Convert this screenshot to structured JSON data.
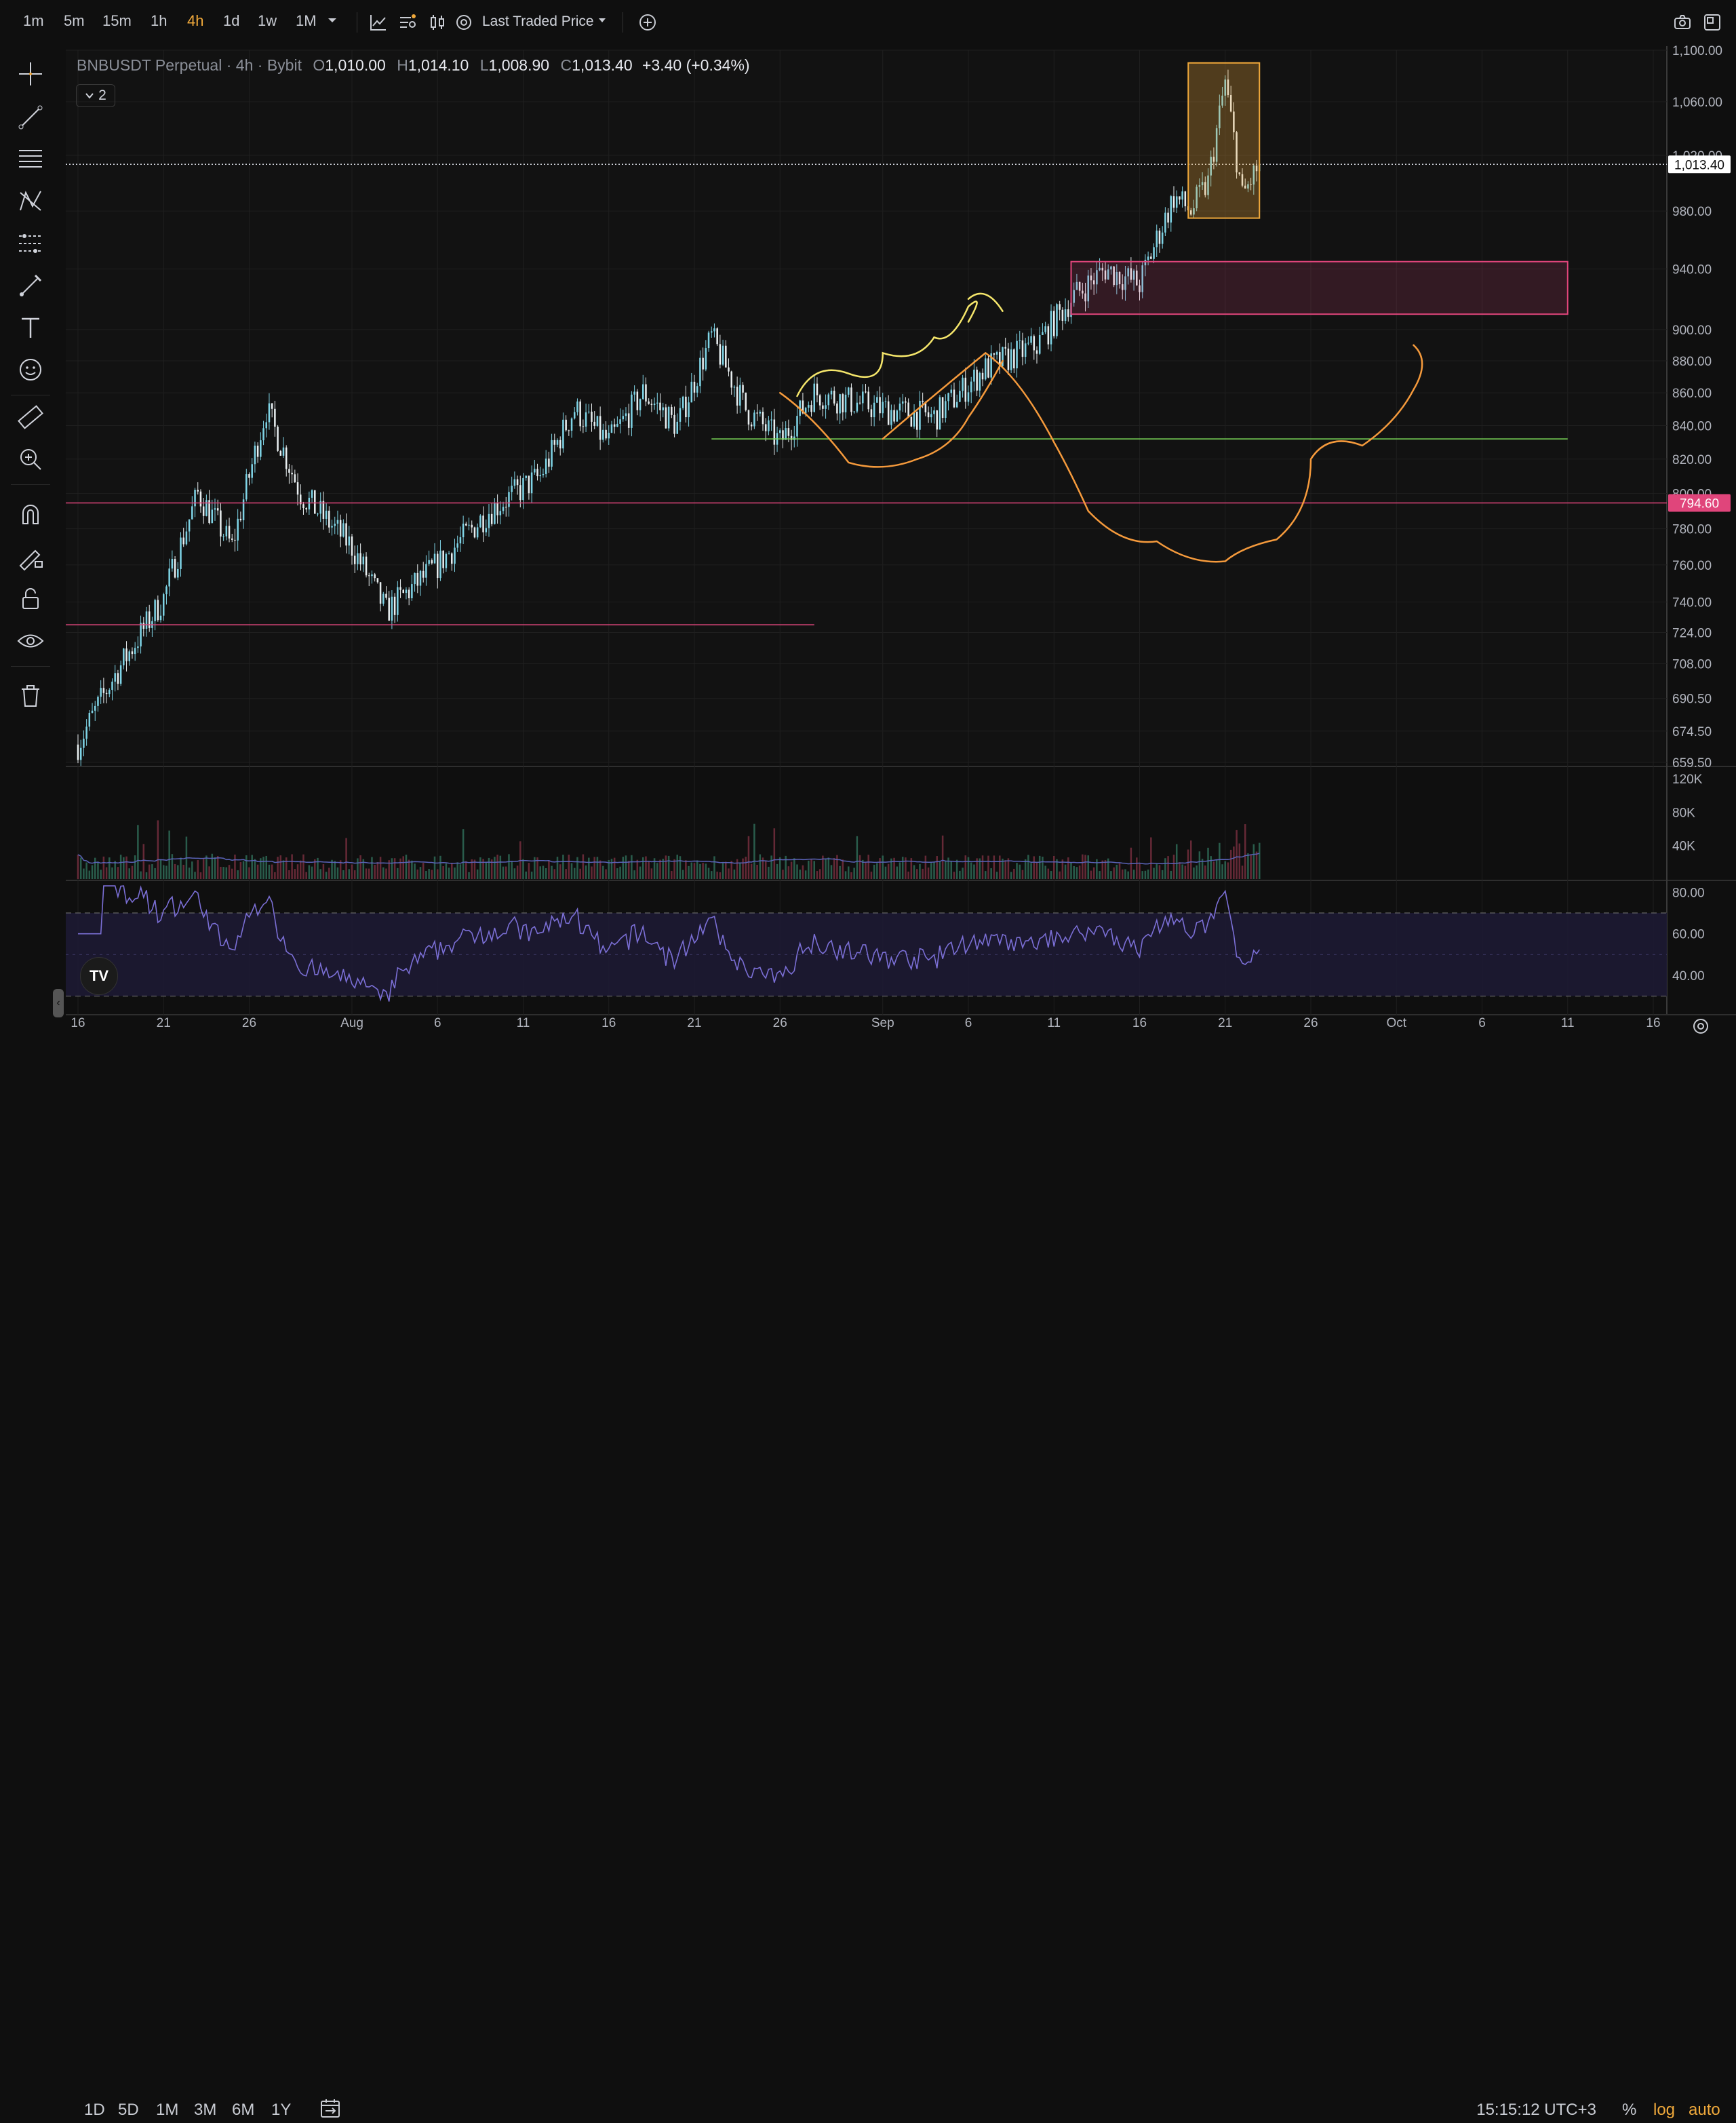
{
  "timeframes": [
    "1m",
    "5m",
    "15m",
    "1h",
    "4h",
    "1d",
    "1w",
    "1M"
  ],
  "active_timeframe": "4h",
  "price_source": "Last Traded Price",
  "legend": {
    "symbol": "BNBUSDT Perpetual",
    "interval": "4h",
    "exchange": "Bybit",
    "o_label": "O",
    "o_value": "1,010.00",
    "h_label": "H",
    "h_value": "1,014.10",
    "l_label": "L",
    "l_value": "1,008.90",
    "c_label": "C",
    "c_value": "1,013.40",
    "change": "+3.40 (+0.34%)",
    "indicator_count": "2"
  },
  "price_axis": {
    "ticks": [
      "1,100.00",
      "1,060.00",
      "1,020.00",
      "980.00",
      "940.00",
      "900.00",
      "880.00",
      "860.00",
      "840.00",
      "820.00",
      "800.00",
      "780.00",
      "760.00",
      "740.00",
      "724.00",
      "708.00",
      "690.50",
      "674.50",
      "659.50"
    ],
    "last_price_label": "1,013.40",
    "level_label": "794.60"
  },
  "volume_axis": {
    "ticks": [
      "120K",
      "80K",
      "40K"
    ]
  },
  "rsi_axis": {
    "ticks": [
      "80.00",
      "60.00",
      "40.00"
    ]
  },
  "time_axis": {
    "labels": [
      "16",
      "21",
      "26",
      "Aug",
      "6",
      "11",
      "16",
      "21",
      "26",
      "Sep",
      "6",
      "11",
      "16",
      "21",
      "26",
      "Oct",
      "6",
      "11",
      "16"
    ]
  },
  "ranges": [
    "1D",
    "5D",
    "1M",
    "3M",
    "6M",
    "1Y"
  ],
  "clock": "15:15:12 UTC+3",
  "scale_options": {
    "percent": "%",
    "log": "log",
    "auto": "auto"
  },
  "colors": {
    "up": "#7fd4e6",
    "down": "#e8eef0",
    "accent": "#f0a93b",
    "pink": "#e0457b",
    "green": "#7bdc5a",
    "orange": "#f59a3c",
    "yellow": "#f5e66b",
    "rsi": "#7b6fd6"
  },
  "chart_data": {
    "type": "candlestick",
    "symbol": "BNBUSDT Perpetual",
    "interval": "4h",
    "price_scale": "log",
    "price_range": [
      659.5,
      1100
    ],
    "date_range": [
      "Jul 16",
      "Oct 16"
    ],
    "close_path": [
      [
        "Jul 16",
        668
      ],
      [
        "Jul 18",
        700
      ],
      [
        "Jul 21",
        742
      ],
      [
        "Jul 23",
        800
      ],
      [
        "Jul 25",
        770
      ],
      [
        "Jul 27",
        850
      ],
      [
        "Jul 29",
        800
      ],
      [
        "Aug 1",
        770
      ],
      [
        "Aug 3",
        735
      ],
      [
        "Aug 6",
        760
      ],
      [
        "Aug 9",
        790
      ],
      [
        "Aug 12",
        810
      ],
      [
        "Aug 14",
        850
      ],
      [
        "Aug 16",
        830
      ],
      [
        "Aug 18",
        860
      ],
      [
        "Aug 20",
        840
      ],
      [
        "Aug 22",
        895
      ],
      [
        "Aug 24",
        850
      ],
      [
        "Aug 26",
        830
      ],
      [
        "Aug 28",
        860
      ],
      [
        "Sep 1",
        850
      ],
      [
        "Sep 4",
        845
      ],
      [
        "Sep 7",
        875
      ],
      [
        "Sep 10",
        890
      ],
      [
        "Sep 12",
        920
      ],
      [
        "Sep 14",
        940
      ],
      [
        "Sep 16",
        930
      ],
      [
        "Sep 18",
        990
      ],
      [
        "Sep 19",
        980
      ],
      [
        "Sep 20",
        1000
      ],
      [
        "Sep 21",
        1075
      ],
      [
        "Sep 22",
        990
      ],
      [
        "Sep 23",
        1013.4
      ]
    ],
    "last_close": 1013.4,
    "horizontal_levels": [
      794.6,
      820
    ],
    "annotations": {
      "demand_zone": [
        910,
        945
      ],
      "highlight_box": [
        975,
        1090
      ]
    },
    "volume_max": 120000,
    "rsi_bands": [
      70,
      30
    ],
    "rsi_range_shown": [
      25,
      85
    ]
  }
}
